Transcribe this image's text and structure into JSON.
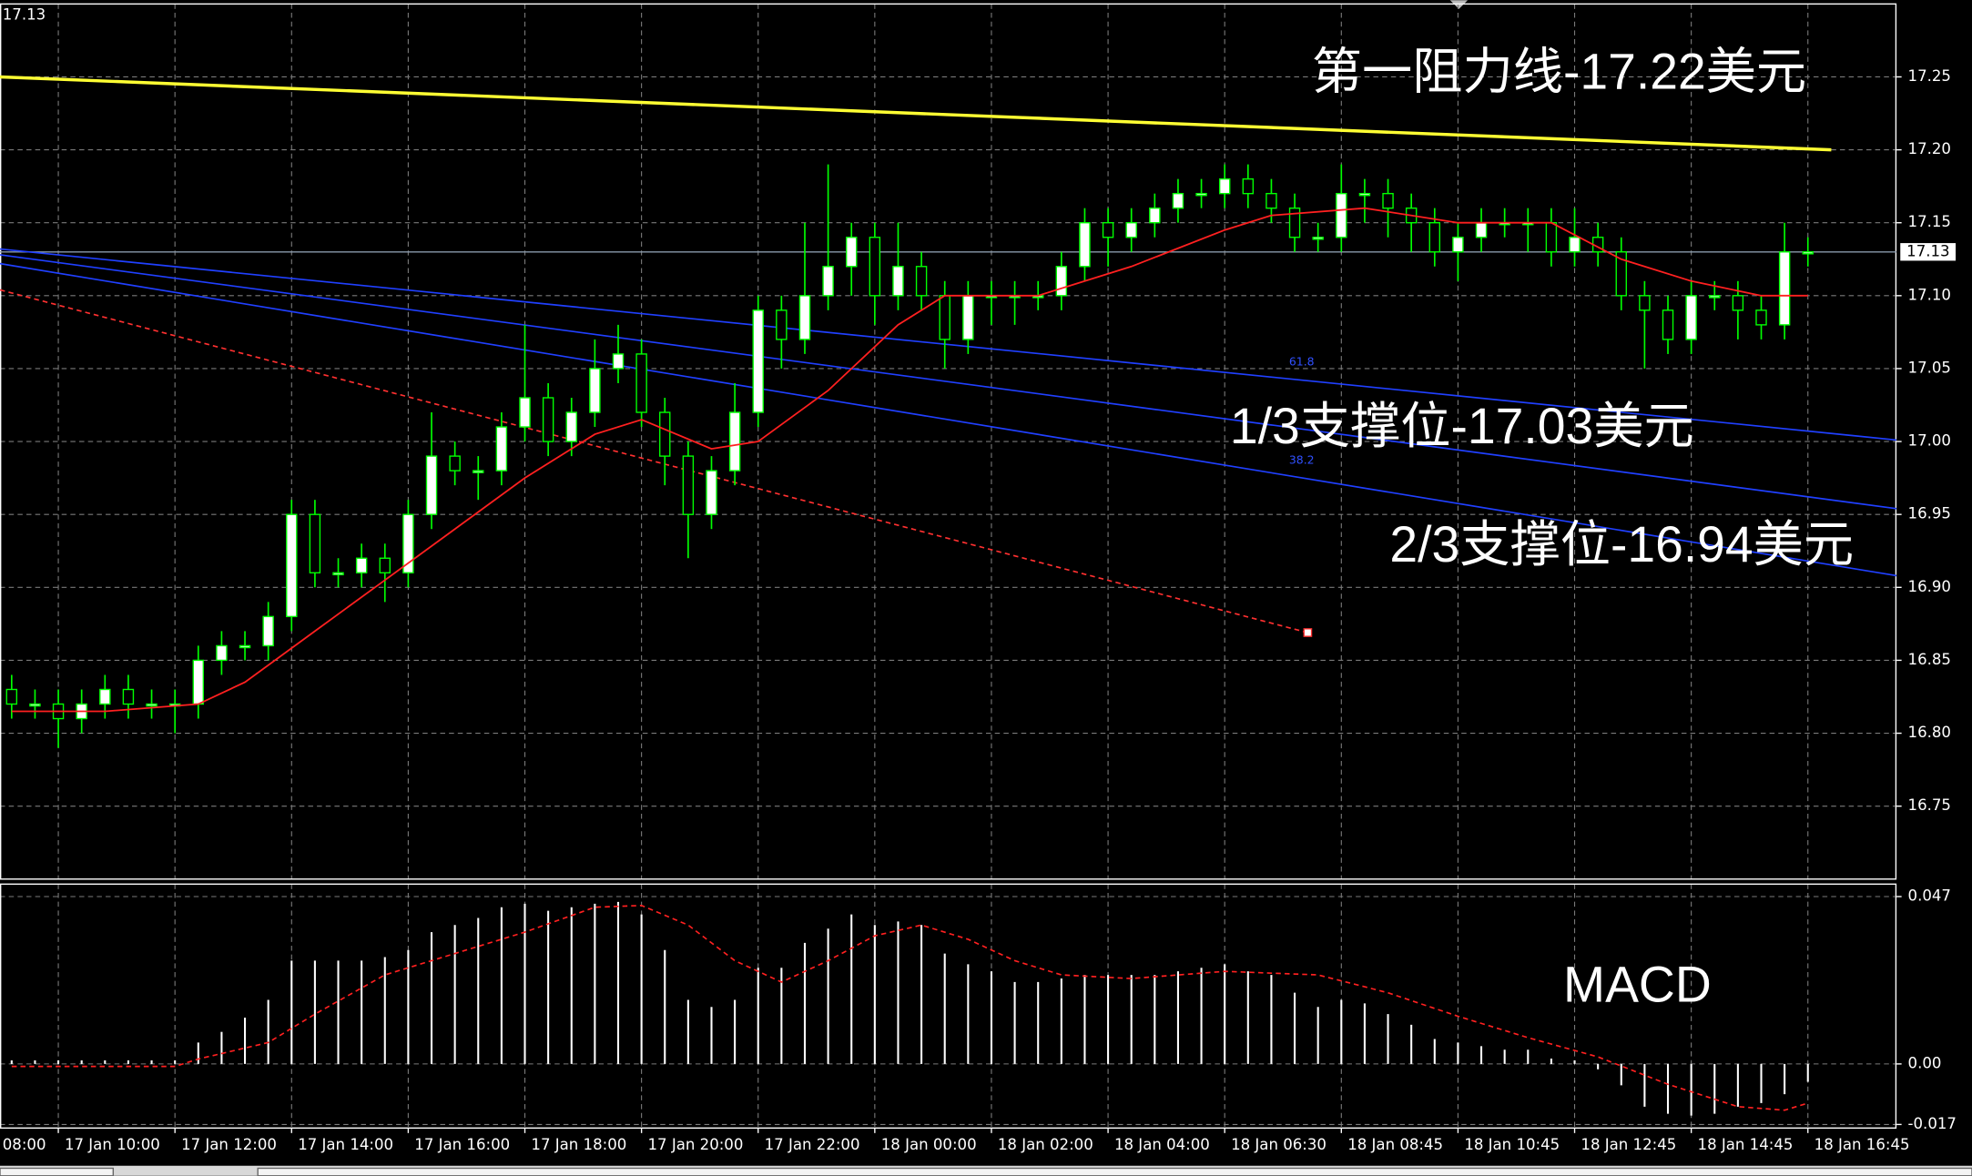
{
  "chart_data": [
    {
      "type": "candlestick",
      "top_label": "17.13",
      "xlim": [
        -0.5,
        80.8
      ],
      "xticks": [
        {
          "value": -3,
          "label": "08:00"
        },
        {
          "value": 2,
          "label": "17 Jan 10:00"
        },
        {
          "value": 7,
          "label": "17 Jan 12:00"
        },
        {
          "value": 12,
          "label": "17 Jan 14:00"
        },
        {
          "value": 17,
          "label": "17 Jan 16:00"
        },
        {
          "value": 22,
          "label": "17 Jan 18:00"
        },
        {
          "value": 27,
          "label": "17 Jan 20:00"
        },
        {
          "value": 32,
          "label": "17 Jan 22:00"
        },
        {
          "value": 37,
          "label": "18 Jan 00:00"
        },
        {
          "value": 42,
          "label": "18 Jan 02:00"
        },
        {
          "value": 47,
          "label": "18 Jan 04:00"
        },
        {
          "value": 52,
          "label": "18 Jan 06:30"
        },
        {
          "value": 57,
          "label": "18 Jan 08:45"
        },
        {
          "value": 62,
          "label": "18 Jan 10:45"
        },
        {
          "value": 67,
          "label": "18 Jan 12:45"
        },
        {
          "value": 72,
          "label": "18 Jan 14:45"
        },
        {
          "value": 77,
          "label": "18 Jan 16:45"
        }
      ],
      "ylim": [
        16.7,
        17.3
      ],
      "yticks": [
        16.75,
        {
          "value": 16.8,
          "label": "16.80"
        },
        16.85,
        {
          "value": 16.9,
          "label": "16.90"
        },
        16.95,
        {
          "value": 17.0,
          "label": "17.00"
        },
        17.05,
        {
          "value": 17.1,
          "label": "17.10"
        },
        17.15,
        {
          "value": 17.2,
          "label": "17.20"
        },
        17.25
      ],
      "grid": true,
      "up_color": "#ffffff",
      "down_color": "#000000",
      "wick_color": "#00ff00",
      "open": [
        16.83,
        16.82,
        16.82,
        16.81,
        16.82,
        16.83,
        16.82,
        16.82,
        16.82,
        16.85,
        16.86,
        16.86,
        16.88,
        16.95,
        16.91,
        16.91,
        16.92,
        16.91,
        16.95,
        16.99,
        16.98,
        16.98,
        17.01,
        17.03,
        17.0,
        17.02,
        17.05,
        17.06,
        17.02,
        16.99,
        16.95,
        16.98,
        17.02,
        17.09,
        17.07,
        17.1,
        17.12,
        17.14,
        17.1,
        17.12,
        17.1,
        17.07,
        17.1,
        17.1,
        17.1,
        17.1,
        17.12,
        17.15,
        17.14,
        17.15,
        17.16,
        17.17,
        17.17,
        17.18,
        17.17,
        17.16,
        17.14,
        17.14,
        17.17,
        17.17,
        17.16,
        17.15,
        17.13,
        17.14,
        17.15,
        17.15,
        17.15,
        17.13,
        17.14,
        17.13,
        17.1,
        17.09,
        17.07,
        17.1,
        17.1,
        17.09,
        17.08,
        17.13
      ],
      "high": [
        16.84,
        16.83,
        16.83,
        16.83,
        16.84,
        16.84,
        16.83,
        16.83,
        16.86,
        16.87,
        16.87,
        16.89,
        16.96,
        16.96,
        16.92,
        16.93,
        16.93,
        16.96,
        17.02,
        17.0,
        16.99,
        17.02,
        17.08,
        17.04,
        17.03,
        17.07,
        17.08,
        17.07,
        17.03,
        17.0,
        16.99,
        17.04,
        17.1,
        17.1,
        17.15,
        17.19,
        17.15,
        17.15,
        17.15,
        17.13,
        17.11,
        17.11,
        17.11,
        17.11,
        17.11,
        17.13,
        17.16,
        17.16,
        17.16,
        17.17,
        17.18,
        17.18,
        17.19,
        17.19,
        17.18,
        17.17,
        17.15,
        17.19,
        17.18,
        17.18,
        17.17,
        17.16,
        17.15,
        17.16,
        17.16,
        17.16,
        17.16,
        17.16,
        17.15,
        17.14,
        17.11,
        17.1,
        17.11,
        17.11,
        17.11,
        17.1,
        17.15,
        17.14
      ],
      "low": [
        16.81,
        16.81,
        16.79,
        16.8,
        16.81,
        16.81,
        16.81,
        16.8,
        16.81,
        16.84,
        16.85,
        16.85,
        16.87,
        16.9,
        16.9,
        16.9,
        16.89,
        16.9,
        16.94,
        16.97,
        16.96,
        16.97,
        17.0,
        16.99,
        16.99,
        17.01,
        17.04,
        17.01,
        16.97,
        16.92,
        16.94,
        16.97,
        17.01,
        17.05,
        17.06,
        17.09,
        17.1,
        17.08,
        17.09,
        17.09,
        17.05,
        17.06,
        17.08,
        17.08,
        17.09,
        17.09,
        17.11,
        17.12,
        17.13,
        17.14,
        17.15,
        17.16,
        17.16,
        17.16,
        17.15,
        17.13,
        17.13,
        17.13,
        17.15,
        17.14,
        17.13,
        17.12,
        17.11,
        17.13,
        17.14,
        17.13,
        17.12,
        17.12,
        17.12,
        17.09,
        17.05,
        17.06,
        17.06,
        17.09,
        17.07,
        17.07,
        17.07,
        17.12
      ],
      "close": [
        16.82,
        16.82,
        16.81,
        16.82,
        16.83,
        16.82,
        16.82,
        16.82,
        16.85,
        16.86,
        16.86,
        16.88,
        16.95,
        16.91,
        16.91,
        16.92,
        16.91,
        16.95,
        16.99,
        16.98,
        16.98,
        17.01,
        17.03,
        17.0,
        17.02,
        17.05,
        17.06,
        17.02,
        16.99,
        16.95,
        16.98,
        17.02,
        17.09,
        17.07,
        17.1,
        17.12,
        17.14,
        17.1,
        17.12,
        17.1,
        17.07,
        17.1,
        17.1,
        17.1,
        17.1,
        17.12,
        17.15,
        17.14,
        17.15,
        17.16,
        17.17,
        17.17,
        17.18,
        17.17,
        17.16,
        17.14,
        17.14,
        17.17,
        17.17,
        17.16,
        17.15,
        17.13,
        17.14,
        17.15,
        17.15,
        17.15,
        17.13,
        17.14,
        17.13,
        17.1,
        17.09,
        17.07,
        17.1,
        17.1,
        17.09,
        17.08,
        17.13,
        17.13
      ],
      "ma": {
        "color": "#ff2020",
        "x": [
          0,
          4,
          8,
          10,
          13,
          16,
          19,
          22,
          25,
          27,
          30,
          32,
          35,
          38,
          40,
          44,
          48,
          52,
          54,
          58,
          62,
          66,
          69,
          72,
          75,
          77
        ],
        "values": [
          16.815,
          16.815,
          16.82,
          16.835,
          16.87,
          16.905,
          16.94,
          16.975,
          17.005,
          17.015,
          16.995,
          17.0,
          17.035,
          17.08,
          17.1,
          17.1,
          17.12,
          17.145,
          17.155,
          17.16,
          17.15,
          17.15,
          17.125,
          17.11,
          17.1,
          17.1
        ]
      },
      "current_price": {
        "value": 17.13,
        "label": "17.13",
        "color": "#8a9aac"
      },
      "trendlines": [
        {
          "color": "#ffff33",
          "dashed": false,
          "x": [
            -0.5,
            78.0
          ],
          "values": [
            17.25,
            17.2
          ],
          "label": "第一阻力线-17.22美元"
        },
        {
          "color": "#2040ff",
          "dashed": false,
          "x": [
            -0.5,
            80.8
          ],
          "values": [
            17.132,
            17.001
          ],
          "label": "1/3支撑位-17.03美元"
        },
        {
          "color": "#2040ff",
          "dashed": false,
          "x": [
            -0.5,
            80.8
          ],
          "values": [
            17.128,
            16.954
          ],
          "label": "2/3支撑位-16.94美元"
        },
        {
          "color": "#2040ff",
          "dashed": false,
          "x": [
            -0.5,
            80.8
          ],
          "values": [
            17.122,
            16.908
          ]
        },
        {
          "color": "#ff3030",
          "dashed": true,
          "x": [
            -0.5,
            55.56
          ],
          "values": [
            17.104,
            16.869
          ]
        }
      ],
      "fib_labels": [
        "61.8",
        "38.2"
      ]
    },
    {
      "type": "macd",
      "title": "MACD",
      "ylim": [
        -0.018,
        0.0505
      ],
      "yticks": [
        0.047,
        {
          "value": 0,
          "label": "0.00"
        },
        -0.017
      ],
      "histogram_color": "#ffffff",
      "histogram": [
        0.001,
        0.001,
        0.001,
        0.001,
        0.001,
        0.001,
        0.001,
        0.001,
        0.006,
        0.009,
        0.013,
        0.018,
        0.029,
        0.029,
        0.029,
        0.029,
        0.03,
        0.032,
        0.037,
        0.039,
        0.041,
        0.044,
        0.045,
        0.043,
        0.044,
        0.045,
        0.0455,
        0.042,
        0.032,
        0.018,
        0.016,
        0.018,
        0.027,
        0.027,
        0.034,
        0.038,
        0.042,
        0.039,
        0.04,
        0.039,
        0.031,
        0.028,
        0.026,
        0.023,
        0.023,
        0.024,
        0.025,
        0.025,
        0.025,
        0.025,
        0.026,
        0.027,
        0.028,
        0.026,
        0.025,
        0.02,
        0.016,
        0.018,
        0.017,
        0.014,
        0.011,
        0.007,
        0.006,
        0.005,
        0.004,
        0.004,
        0.0015,
        0.001,
        -0.0015,
        -0.006,
        -0.012,
        -0.014,
        -0.0145,
        -0.014,
        -0.012,
        -0.011,
        -0.0085,
        -0.005
      ],
      "signal": {
        "color": "#ff2020",
        "x": [
          0,
          7,
          8,
          11,
          13,
          16,
          19,
          22,
          25,
          27,
          29,
          31,
          33,
          35,
          37,
          39,
          41,
          43,
          45,
          48,
          52,
          56,
          59,
          62,
          65,
          68,
          71,
          74,
          76,
          77
        ],
        "values": [
          -0.0007,
          -0.0007,
          0.0014,
          0.006,
          0.014,
          0.025,
          0.031,
          0.037,
          0.044,
          0.0445,
          0.039,
          0.029,
          0.023,
          0.029,
          0.036,
          0.039,
          0.035,
          0.029,
          0.025,
          0.024,
          0.026,
          0.025,
          0.02,
          0.0134,
          0.0074,
          0.002,
          -0.0057,
          -0.012,
          -0.013,
          -0.011
        ]
      }
    }
  ]
}
